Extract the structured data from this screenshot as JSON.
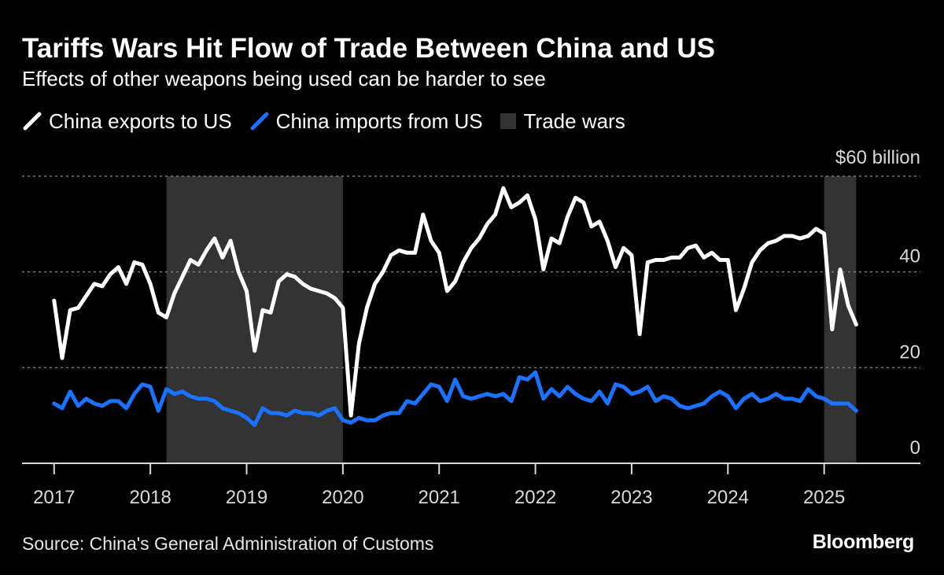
{
  "title": "Tariffs Wars Hit Flow of Trade Between China and US",
  "subtitle": "Effects of other weapons being used can be harder to see",
  "source": "Source: China's General Administration of Customs",
  "brand": "Bloomberg",
  "colors": {
    "background": "#000000",
    "exports": "#ffffff",
    "imports": "#1a73ff",
    "trade_wars": "#333333",
    "grid": "#777777"
  },
  "chart_data": {
    "type": "line",
    "title": "Tariffs Wars Hit Flow of Trade Between China and US",
    "subtitle": "Effects of other weapons being used can be harder to see",
    "ylabel": "$60 billion",
    "y_unit_label": "$60 billion",
    "ylim": [
      0,
      60
    ],
    "y_ticks": [
      {
        "value": 0,
        "label": "0"
      },
      {
        "value": 20,
        "label": "20"
      },
      {
        "value": 40,
        "label": "40"
      },
      {
        "value": 60,
        "label": "$60 billion"
      }
    ],
    "x_tick_labels": [
      "2017",
      "2018",
      "2019",
      "2020",
      "2021",
      "2022",
      "2023",
      "2024",
      "2025"
    ],
    "xlim": [
      "2016-09",
      "2026-01"
    ],
    "grid": true,
    "legend_position": "top-left",
    "legend": [
      "China exports to US",
      "China imports from US",
      "Trade wars"
    ],
    "shaded_regions": [
      {
        "name": "Trade wars",
        "start": "2018-03",
        "end": "2020-01"
      },
      {
        "name": "Trade wars",
        "start": "2025-01",
        "end": "2025-05"
      }
    ],
    "series": [
      {
        "name": "China exports to US",
        "color": "#ffffff",
        "x": [
          "2017-01",
          "2017-02",
          "2017-03",
          "2017-04",
          "2017-05",
          "2017-06",
          "2017-07",
          "2017-08",
          "2017-09",
          "2017-10",
          "2017-11",
          "2017-12",
          "2018-01",
          "2018-02",
          "2018-03",
          "2018-04",
          "2018-05",
          "2018-06",
          "2018-07",
          "2018-08",
          "2018-09",
          "2018-10",
          "2018-11",
          "2018-12",
          "2019-01",
          "2019-02",
          "2019-03",
          "2019-04",
          "2019-05",
          "2019-06",
          "2019-07",
          "2019-08",
          "2019-09",
          "2019-10",
          "2019-11",
          "2019-12",
          "2020-01",
          "2020-02",
          "2020-03",
          "2020-04",
          "2020-05",
          "2020-06",
          "2020-07",
          "2020-08",
          "2020-09",
          "2020-10",
          "2020-11",
          "2020-12",
          "2021-01",
          "2021-02",
          "2021-03",
          "2021-04",
          "2021-05",
          "2021-06",
          "2021-07",
          "2021-08",
          "2021-09",
          "2021-10",
          "2021-11",
          "2021-12",
          "2022-01",
          "2022-02",
          "2022-03",
          "2022-04",
          "2022-05",
          "2022-06",
          "2022-07",
          "2022-08",
          "2022-09",
          "2022-10",
          "2022-11",
          "2022-12",
          "2023-01",
          "2023-02",
          "2023-03",
          "2023-04",
          "2023-05",
          "2023-06",
          "2023-07",
          "2023-08",
          "2023-09",
          "2023-10",
          "2023-11",
          "2023-12",
          "2024-01",
          "2024-02",
          "2024-03",
          "2024-04",
          "2024-05",
          "2024-06",
          "2024-07",
          "2024-08",
          "2024-09",
          "2024-10",
          "2024-11",
          "2024-12",
          "2025-01",
          "2025-02",
          "2025-03",
          "2025-04",
          "2025-05"
        ],
        "values": [
          34,
          22,
          32,
          32.5,
          35,
          37.5,
          37,
          39.5,
          41,
          37.5,
          42,
          41.5,
          37.5,
          31.5,
          30.5,
          35.5,
          39,
          42.5,
          41.5,
          44.5,
          47,
          43,
          46.5,
          40,
          36,
          23.5,
          32,
          31.5,
          38,
          39.5,
          39,
          37.5,
          36.5,
          36,
          35.5,
          34.5,
          32.5,
          10,
          25,
          32.5,
          37.5,
          40,
          43.5,
          44.5,
          44,
          44,
          52,
          46.5,
          44,
          36,
          38,
          42,
          45,
          47,
          50,
          52,
          57.5,
          53.5,
          54.5,
          56,
          51,
          40.5,
          47,
          46,
          51.5,
          55.5,
          54.5,
          49.5,
          50.5,
          46.5,
          41,
          45,
          43.5,
          27,
          42,
          42.5,
          42.5,
          43,
          43,
          45,
          45.5,
          43,
          44,
          42.5,
          42.5,
          32,
          36.5,
          42,
          44.5,
          46,
          46.5,
          47.5,
          47.5,
          47,
          47.5,
          49,
          48,
          28,
          40.5,
          33,
          29
        ]
      },
      {
        "name": "China imports from US",
        "color": "#1a73ff",
        "x": [
          "2017-01",
          "2017-02",
          "2017-03",
          "2017-04",
          "2017-05",
          "2017-06",
          "2017-07",
          "2017-08",
          "2017-09",
          "2017-10",
          "2017-11",
          "2017-12",
          "2018-01",
          "2018-02",
          "2018-03",
          "2018-04",
          "2018-05",
          "2018-06",
          "2018-07",
          "2018-08",
          "2018-09",
          "2018-10",
          "2018-11",
          "2018-12",
          "2019-01",
          "2019-02",
          "2019-03",
          "2019-04",
          "2019-05",
          "2019-06",
          "2019-07",
          "2019-08",
          "2019-09",
          "2019-10",
          "2019-11",
          "2019-12",
          "2020-01",
          "2020-02",
          "2020-03",
          "2020-04",
          "2020-05",
          "2020-06",
          "2020-07",
          "2020-08",
          "2020-09",
          "2020-10",
          "2020-11",
          "2020-12",
          "2021-01",
          "2021-02",
          "2021-03",
          "2021-04",
          "2021-05",
          "2021-06",
          "2021-07",
          "2021-08",
          "2021-09",
          "2021-10",
          "2021-11",
          "2021-12",
          "2022-01",
          "2022-02",
          "2022-03",
          "2022-04",
          "2022-05",
          "2022-06",
          "2022-07",
          "2022-08",
          "2022-09",
          "2022-10",
          "2022-11",
          "2022-12",
          "2023-01",
          "2023-02",
          "2023-03",
          "2023-04",
          "2023-05",
          "2023-06",
          "2023-07",
          "2023-08",
          "2023-09",
          "2023-10",
          "2023-11",
          "2023-12",
          "2024-01",
          "2024-02",
          "2024-03",
          "2024-04",
          "2024-05",
          "2024-06",
          "2024-07",
          "2024-08",
          "2024-09",
          "2024-10",
          "2024-11",
          "2024-12",
          "2025-01",
          "2025-02",
          "2025-03",
          "2025-04",
          "2025-05"
        ],
        "values": [
          12.5,
          11.5,
          15,
          12,
          13.5,
          12.5,
          12,
          13,
          13,
          11.5,
          14.5,
          16.5,
          16,
          11,
          15.5,
          14.5,
          15,
          14,
          13.5,
          13.5,
          13,
          11.5,
          11,
          10.5,
          9.5,
          8,
          11.5,
          10.5,
          10.5,
          10,
          11,
          10.5,
          10.5,
          10,
          11,
          11.5,
          9,
          8.5,
          9.5,
          9,
          9,
          10,
          10.5,
          10.5,
          13,
          12.5,
          14.5,
          16.5,
          16,
          13,
          17.5,
          14,
          13.5,
          14,
          14.5,
          14,
          14.5,
          13,
          18,
          17.5,
          19,
          13.5,
          15.5,
          14,
          16,
          14.5,
          13.5,
          13,
          15,
          12.5,
          16.5,
          16,
          14.5,
          15,
          16,
          13,
          14,
          13.5,
          12,
          11.5,
          12,
          12.5,
          14,
          15,
          14,
          11.5,
          13.5,
          14.5,
          13,
          13.5,
          14.5,
          13.5,
          13.5,
          13,
          15.5,
          14,
          13.5,
          12.5,
          12.5,
          12.5,
          11
        ]
      }
    ]
  }
}
